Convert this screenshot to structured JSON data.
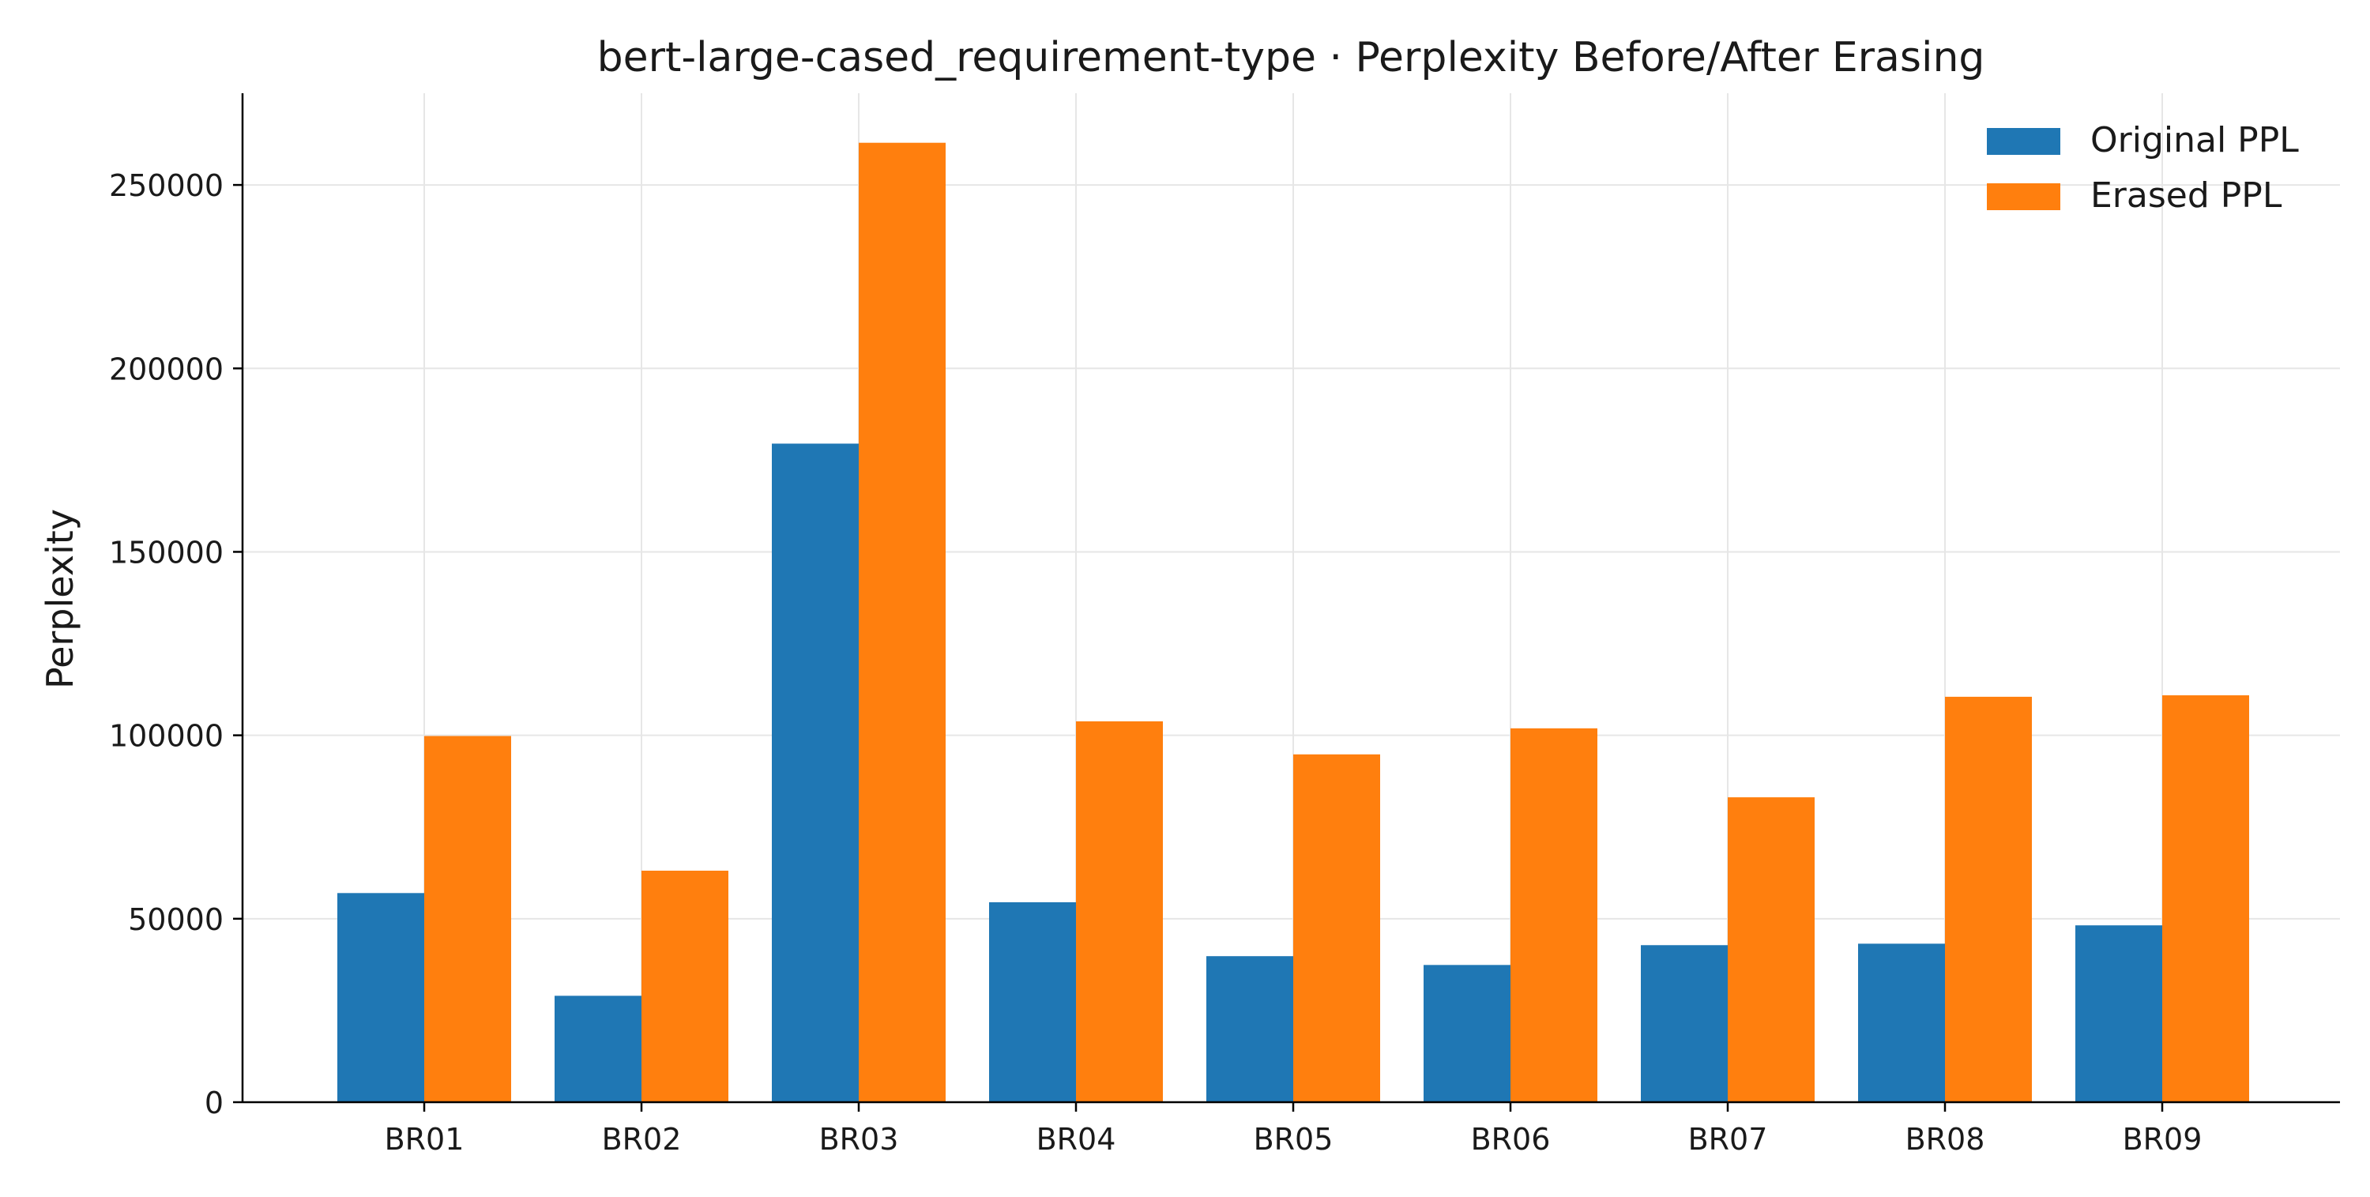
{
  "chart_data": {
    "type": "bar",
    "title": "bert-large-cased_requirement-type · Perplexity Before/After Erasing",
    "xlabel": "",
    "ylabel": "Perplexity",
    "categories": [
      "BR01",
      "BR02",
      "BR03",
      "BR04",
      "BR05",
      "BR06",
      "BR07",
      "BR08",
      "BR09"
    ],
    "series": [
      {
        "name": "Original PPL",
        "color": "#1f77b4",
        "values": [
          57000,
          29000,
          179500,
          54500,
          39800,
          37400,
          42800,
          43200,
          48200
        ]
      },
      {
        "name": "Erased PPL",
        "color": "#ff7f0e",
        "values": [
          99800,
          63100,
          261500,
          103800,
          94800,
          101900,
          83100,
          110500,
          110900
        ]
      }
    ],
    "ylim": [
      0,
      275000
    ],
    "yticks": [
      0,
      50000,
      100000,
      150000,
      200000,
      250000
    ],
    "grid": true,
    "legend_position": "top-right"
  }
}
